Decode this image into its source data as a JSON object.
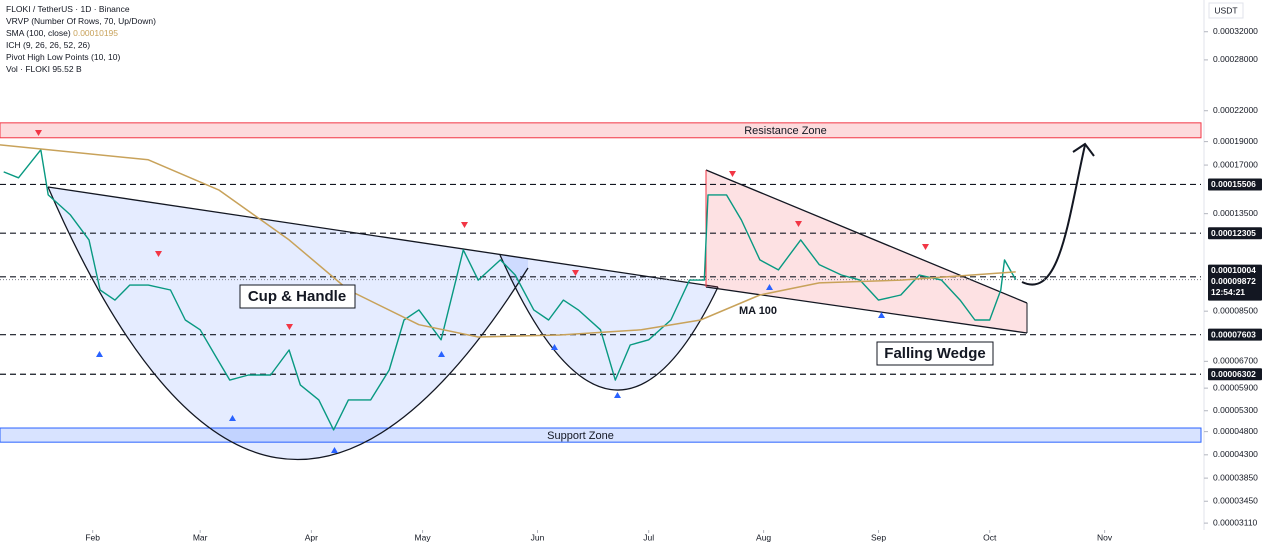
{
  "chart_data": {
    "type": "line",
    "title": "FLOKI / TetherUS · 1D · Binance",
    "indicators": [
      "VRVP (Number Of Rows, 70, Up/Down)",
      "SMA (100, close)",
      "ICH (9, 26, 26, 52, 26)",
      "Pivot High Low Points (10, 10)",
      "Vol · FLOKI"
    ],
    "sma_value": "0.00010195",
    "volume_value": "95.52 B",
    "currency": "USDT",
    "log_scale": true,
    "xlim": [
      0,
      324
    ],
    "xticks": [
      {
        "value": 25,
        "label": "Feb"
      },
      {
        "value": 54,
        "label": "Mar"
      },
      {
        "value": 84,
        "label": "Apr"
      },
      {
        "value": 114,
        "label": "May"
      },
      {
        "value": 145,
        "label": "Jun"
      },
      {
        "value": 175,
        "label": "Jul"
      },
      {
        "value": 206,
        "label": "Aug"
      },
      {
        "value": 237,
        "label": "Sep"
      },
      {
        "value": 267,
        "label": "Oct"
      },
      {
        "value": 298,
        "label": "Nov"
      }
    ],
    "ylim": [
      3.01e-05,
      0.000372
    ],
    "yticks": [
      {
        "value": 0.00032,
        "label": "0.00032000"
      },
      {
        "value": 0.00028,
        "label": "0.00028000"
      },
      {
        "value": 0.00022,
        "label": "0.00022000"
      },
      {
        "value": 0.00019,
        "label": "0.00019000"
      },
      {
        "value": 0.00017,
        "label": "0.00017000"
      },
      {
        "value": 0.000135,
        "label": "0.00013500"
      },
      {
        "value": 8.5e-05,
        "label": "0.00008500"
      },
      {
        "value": 6.7e-05,
        "label": "0.00006700"
      },
      {
        "value": 5.9e-05,
        "label": "0.00005900"
      },
      {
        "value": 5.3e-05,
        "label": "0.00005300"
      },
      {
        "value": 4.8e-05,
        "label": "0.00004800"
      },
      {
        "value": 4.3e-05,
        "label": "0.00004300"
      },
      {
        "value": 3.85e-05,
        "label": "0.00003850"
      },
      {
        "value": 3.45e-05,
        "label": "0.00003450"
      },
      {
        "value": 3.11e-05,
        "label": "0.00003110"
      }
    ],
    "series": [
      {
        "color": "#089981",
        "x": [
          1,
          5,
          11,
          13,
          19,
          24,
          27,
          31,
          35,
          40,
          46,
          50,
          54,
          58,
          62,
          67,
          73,
          78,
          81,
          86,
          90,
          94,
          100,
          105,
          109,
          113,
          119,
          123,
          125,
          129,
          135,
          139,
          144,
          148,
          152,
          156,
          162,
          166,
          170,
          175,
          181,
          186,
          190,
          191,
          196,
          200,
          205,
          210,
          216,
          221,
          227,
          232,
          237,
          243,
          248,
          254,
          259,
          263,
          267,
          270,
          271,
          274
        ],
        "values": [
          0.0001646,
          0.00016,
          0.0001828,
          0.0001476,
          0.0001342,
          0.0001192,
          9.4e-05,
          8.96e-05,
          9.62e-05,
          9.62e-05,
          9.4e-05,
          8.15e-05,
          7.78e-05,
          6.9e-05,
          6.13e-05,
          6.28e-05,
          6.28e-05,
          7.07e-05,
          5.99e-05,
          5.58e-05,
          4.84e-05,
          5.58e-05,
          5.58e-05,
          6.43e-05,
          8.15e-05,
          8.55e-05,
          7.42e-05,
          9.85e-05,
          0.0001137,
          9.85e-05,
          0.0001084,
          0.0001009,
          8.55e-05,
          8.15e-05,
          8.96e-05,
          8.55e-05,
          7.78e-05,
          6.13e-05,
          7.24e-05,
          7.42e-05,
          8.15e-05,
          9.85e-05,
          9.85e-05,
          0.0001476,
          0.0001476,
          0.000131,
          0.0001084,
          0.0001034,
          0.0001192,
          0.000106,
          0.0001009,
          9.85e-05,
          8.96e-05,
          9.18e-05,
          0.0001009,
          9.85e-05,
          8.96e-05,
          8.15e-05,
          8.15e-05,
          9.4e-05,
          0.0001084,
          9.872e-05
        ]
      },
      {
        "name": "MA 100",
        "color": "#c8a25a",
        "x": [
          0,
          40,
          59,
          78,
          94,
          113,
          129,
          151,
          173,
          189,
          205,
          221,
          243,
          274
        ],
        "values": [
          0.0001871,
          0.0001743,
          0.0001511,
          0.0001192,
          9.4e-05,
          7.97e-05,
          7.52e-05,
          7.59e-05,
          7.78e-05,
          8.15e-05,
          9.18e-05,
          9.72e-05,
          9.85e-05,
          0.0001024
        ]
      }
    ],
    "zones": [
      {
        "label": "Resistance Zone",
        "low": 0.0001935,
        "high": 0.0002077,
        "color": "#f23645"
      },
      {
        "label": "Support Zone",
        "low": 4.566e-05,
        "high": 4.883e-05,
        "color": "#2962ff"
      }
    ],
    "levels": [
      0.00015506,
      0.00012305,
      0.00010004,
      7.603e-05,
      6.302e-05
    ],
    "last_price": 9.872e-05,
    "countdown": "12:54:21",
    "patterns": [
      "Cup & Handle",
      "Falling Wedge"
    ]
  }
}
